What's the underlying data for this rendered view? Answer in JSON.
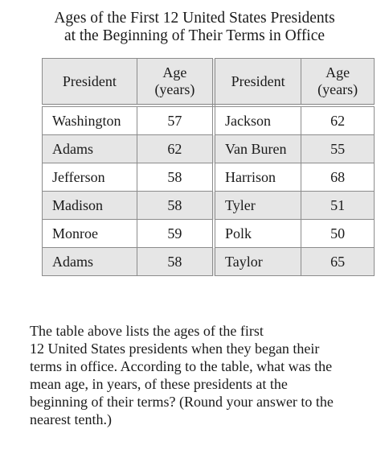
{
  "title": {
    "line1": "Ages of the First 12 United States Presidents",
    "line2": "at the Beginning of Their Terms in Office"
  },
  "table": {
    "headers": {
      "president": "President",
      "age_line1": "Age",
      "age_line2": "(years)"
    },
    "rows": [
      {
        "left_name": "Washington",
        "left_age": "57",
        "right_name": "Jackson",
        "right_age": "62"
      },
      {
        "left_name": "Adams",
        "left_age": "62",
        "right_name": "Van Buren",
        "right_age": "55"
      },
      {
        "left_name": "Jefferson",
        "left_age": "58",
        "right_name": "Harrison",
        "right_age": "68"
      },
      {
        "left_name": "Madison",
        "left_age": "58",
        "right_name": "Tyler",
        "right_age": "51"
      },
      {
        "left_name": "Monroe",
        "left_age": "59",
        "right_name": "Polk",
        "right_age": "50"
      },
      {
        "left_name": "Adams",
        "left_age": "58",
        "right_name": "Taylor",
        "right_age": "65"
      }
    ]
  },
  "question": {
    "lines": [
      "The table above lists the ages of the first",
      "12 United States presidents when they began their",
      "terms in office.  According to the table, what was the",
      "mean age, in years, of these presidents at the",
      "beginning of their terms? (Round your answer to the",
      "nearest tenth.)"
    ]
  }
}
